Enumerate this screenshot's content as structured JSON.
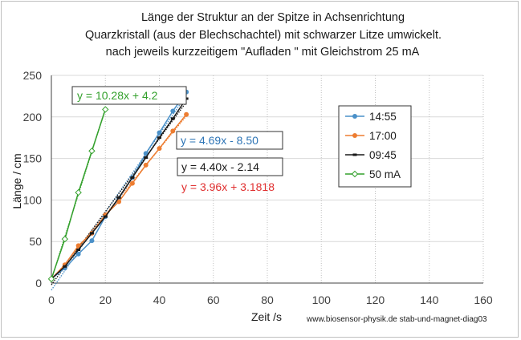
{
  "chart_data": {
    "type": "scatter",
    "title": [
      "Länge der Struktur an der Spitze in Achsenrichtung",
      "Quarzkristall (aus der Blechschachtel) mit schwarzer Litze umwickelt.",
      "nach jeweils kurzzeitigem \"Aufladen \" mit Gleichstrom  25 mA"
    ],
    "xlabel": "Zeit /s",
    "ylabel": "Länge / cm",
    "xlim": [
      0,
      160
    ],
    "ylim": [
      0,
      250
    ],
    "xticks": [
      "0",
      "20",
      "40",
      "60",
      "80",
      "100",
      "120",
      "140",
      "160"
    ],
    "yticks": [
      "0",
      "50",
      "100",
      "150",
      "200",
      "250"
    ],
    "credit": "www.biosensor-physik.de  stab-und-magnet-diag03",
    "series": [
      {
        "name": "14:55",
        "color": "#4a90c8",
        "marker": "circle",
        "x": [
          0,
          5,
          10,
          15,
          20,
          25,
          30,
          35,
          40,
          45,
          50
        ],
        "y": [
          5,
          18,
          35,
          51,
          80,
          102,
          127,
          156,
          181,
          207,
          230
        ],
        "trend": {
          "slope": 4.69,
          "intercept": -8.5,
          "x_end": 50,
          "color": "#4a90c8"
        }
      },
      {
        "name": "17:00",
        "color": "#ed7d31",
        "marker": "circle",
        "x": [
          0,
          5,
          10,
          15,
          20,
          25,
          30,
          35,
          40,
          45,
          50
        ],
        "y": [
          5,
          22,
          45,
          60,
          82,
          98,
          120,
          142,
          162,
          183,
          203
        ],
        "trend": {
          "slope": 3.96,
          "intercept": 3.1818,
          "x_end": 50,
          "color": "#ed7d31"
        }
      },
      {
        "name": "09:45",
        "color": "#1a1a1a",
        "marker": "dash",
        "x": [
          0,
          5,
          10,
          15,
          20,
          25,
          30,
          35,
          40,
          45,
          50
        ],
        "y": [
          5,
          20,
          40,
          60,
          80,
          103,
          127,
          151,
          175,
          198,
          222
        ],
        "trend": {
          "slope": 4.4,
          "intercept": -2.14,
          "x_end": 50,
          "color": "#1a1a1a"
        }
      },
      {
        "name": "50 mA",
        "color": "#33a02c",
        "marker": "diamond",
        "x": [
          0,
          5,
          10,
          15,
          20
        ],
        "y": [
          5,
          53,
          109,
          159,
          209
        ],
        "trend": {
          "slope": 10.28,
          "intercept": 4.2,
          "x_end": 20,
          "color": "#33a02c"
        }
      }
    ],
    "equations": [
      {
        "text": "y = 10.28x + 4.2",
        "color": "#33a02c"
      },
      {
        "text": "y = 4.69x - 8.50",
        "color": "#2e75b6"
      },
      {
        "text": "y = 4.40x - 2.14",
        "color": "#1a1a1a"
      },
      {
        "text": "y = 3.96x + 3.1818",
        "color": "#e03030"
      }
    ]
  }
}
